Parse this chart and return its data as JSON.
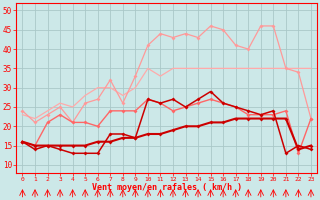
{
  "x": [
    0,
    1,
    2,
    3,
    4,
    5,
    6,
    7,
    8,
    9,
    10,
    11,
    12,
    13,
    14,
    15,
    16,
    17,
    18,
    19,
    20,
    21,
    22,
    23
  ],
  "line_gust_max": [
    24,
    21,
    23,
    25,
    21,
    26,
    27,
    32,
    26,
    33,
    41,
    44,
    43,
    44,
    43,
    46,
    45,
    41,
    40,
    46,
    46,
    35,
    34,
    22
  ],
  "line_gust_avg": [
    23,
    22,
    24,
    26,
    25,
    28,
    30,
    30,
    28,
    30,
    35,
    33,
    35,
    35,
    35,
    35,
    35,
    35,
    35,
    35,
    35,
    35,
    35,
    35
  ],
  "line_wind_max": [
    16,
    15,
    21,
    23,
    21,
    21,
    20,
    24,
    24,
    24,
    27,
    26,
    24,
    25,
    26,
    27,
    26,
    25,
    23,
    23,
    23,
    24,
    13,
    22
  ],
  "line_wind_min": [
    16,
    14,
    15,
    14,
    13,
    13,
    13,
    18,
    18,
    17,
    27,
    26,
    27,
    25,
    27,
    29,
    26,
    25,
    24,
    23,
    24,
    13,
    15,
    14
  ],
  "line_wind_avg": [
    16,
    15,
    15,
    15,
    15,
    15,
    16,
    16,
    17,
    17,
    18,
    18,
    19,
    20,
    20,
    21,
    21,
    22,
    22,
    22,
    22,
    22,
    14,
    15
  ],
  "bg_color": "#cce8e8",
  "grid_color": "#aac8c8",
  "color_light1": "#ffaaaa",
  "color_light2": "#ff9999",
  "color_med": "#ff6666",
  "color_dark": "#cc0000",
  "xlabel": "Vent moyen/en rafales ( km/h )",
  "ylim": [
    8,
    52
  ],
  "yticks": [
    10,
    15,
    20,
    25,
    30,
    35,
    40,
    45,
    50
  ]
}
